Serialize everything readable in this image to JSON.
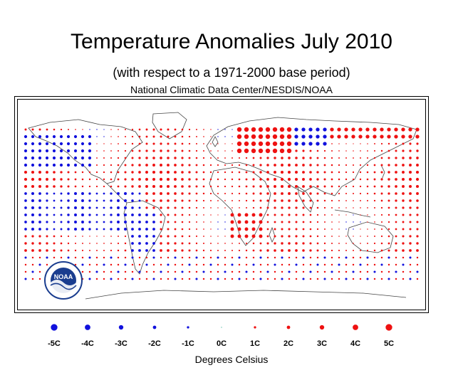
{
  "title": "Temperature Anomalies July 2010",
  "subtitle": "(with respect to a 1971-2000 base period)",
  "source": "National Climatic Data Center/NESDIS/NOAA",
  "logo": {
    "name": "noaa-logo",
    "text": "NOAA"
  },
  "colors": {
    "warm": "#ee1111",
    "cold": "#1111dd",
    "zero": "#22aa88"
  },
  "legend": {
    "items": [
      {
        "label": "-5C",
        "value": -5
      },
      {
        "label": "-4C",
        "value": -4
      },
      {
        "label": "-3C",
        "value": -3
      },
      {
        "label": "-2C",
        "value": -2
      },
      {
        "label": "-1C",
        "value": -1
      },
      {
        "label": "0C",
        "value": 0
      },
      {
        "label": "1C",
        "value": 1
      },
      {
        "label": "2C",
        "value": 2
      },
      {
        "label": "3C",
        "value": 3
      },
      {
        "label": "4C",
        "value": 4
      },
      {
        "label": "5C",
        "value": 5
      }
    ],
    "units": "Degrees Celsius"
  }
}
